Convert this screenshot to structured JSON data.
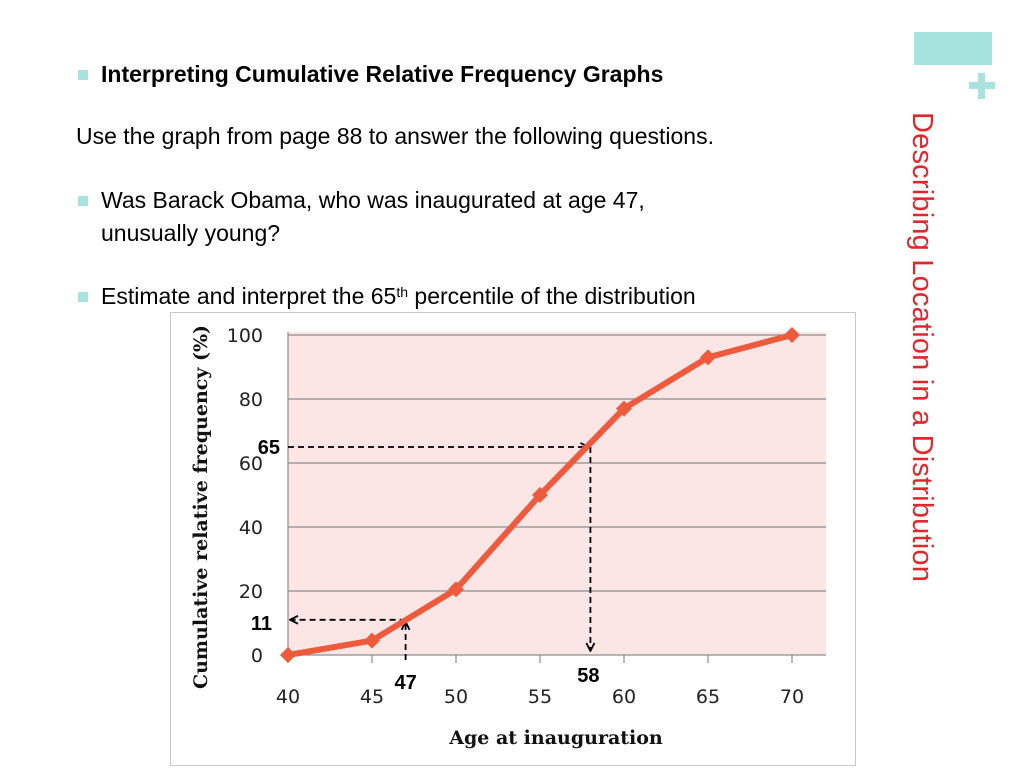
{
  "slide": {
    "side_title": "Describing Location in a Distribution",
    "heading": "Interpreting Cumulative Relative Frequency Graphs",
    "intro": "Use the graph from page 88 to answer the following questions.",
    "bullet1_line1": "Was Barack Obama, who was inaugurated at age 47,",
    "bullet1_line2": "unusually young?",
    "bullet2_pre": "Estimate and interpret the 65",
    "bullet2_sup": "th",
    "bullet2_post": " percentile of the distribution",
    "accent_color": "#a6e3df",
    "title_color": "#e0282c",
    "icons": [
      "plus-icon",
      "square-bullet-icon"
    ]
  },
  "chart_data": {
    "type": "line",
    "xlabel": "Age at inauguration",
    "ylabel": "Cumulative relative frequency (%)",
    "xlim": [
      40,
      70
    ],
    "ylim": [
      0,
      100
    ],
    "x_ticks": [
      40,
      45,
      50,
      55,
      60,
      65,
      70
    ],
    "y_ticks": [
      0,
      20,
      40,
      60,
      80,
      100
    ],
    "grid": "horizontal",
    "plot_background": "#fce5e5",
    "line_color": "#ee5a3c",
    "series": [
      {
        "x": [
          40,
          45,
          50,
          55,
          60,
          65,
          70
        ],
        "y": [
          0,
          4.5,
          20.5,
          50,
          77,
          93,
          100
        ]
      }
    ],
    "annotations": [
      {
        "label": "11",
        "x": 47,
        "y": 11,
        "arrow_to": "y-axis"
      },
      {
        "label": "47",
        "x": 47,
        "y": 11,
        "arrow_to": "point-from-x-axis"
      },
      {
        "label": "65",
        "x": 58,
        "y": 65,
        "arrow_to": "point-from-y-axis"
      },
      {
        "label": "58",
        "x": 58,
        "y": 65,
        "arrow_to": "x-axis"
      }
    ]
  }
}
